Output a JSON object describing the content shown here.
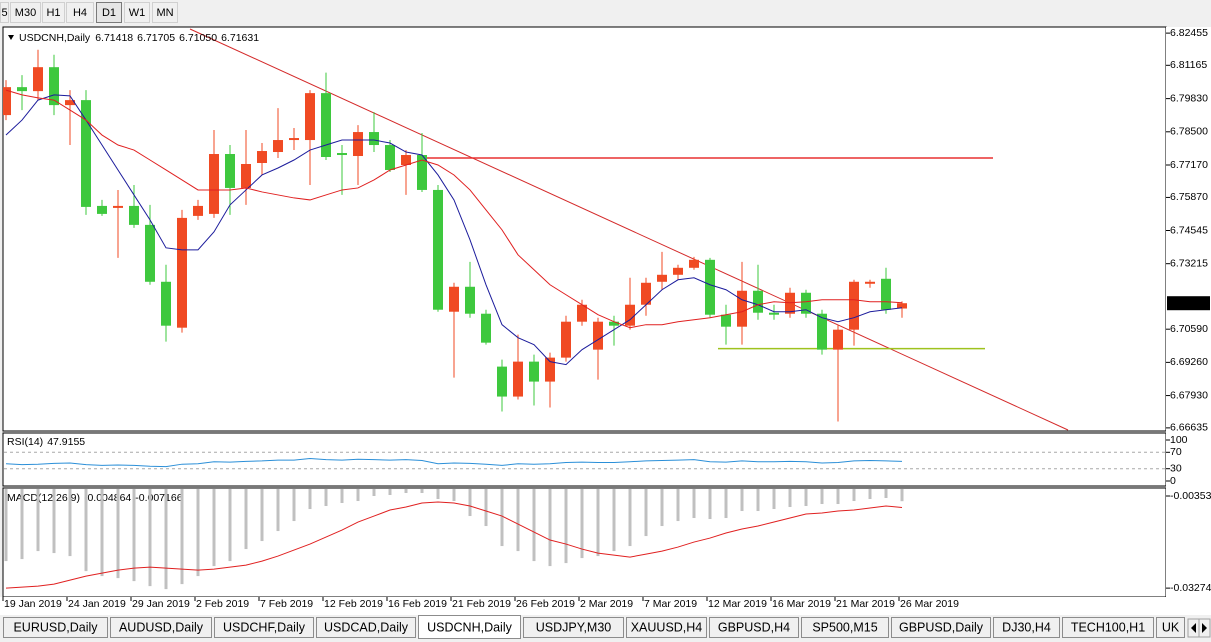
{
  "toolbar": {
    "timeframes": [
      "5",
      "M30",
      "H1",
      "H4",
      "D1",
      "W1",
      "MN"
    ],
    "active_index": 4
  },
  "chart_data": [
    {
      "type": "candlestick",
      "title": "USDCNH,Daily",
      "categories": [
        "19 Jan 2019",
        null,
        null,
        null,
        "24 Jan 2019",
        null,
        null,
        null,
        "29 Jan 2019",
        null,
        null,
        null,
        "2 Feb 2019",
        null,
        null,
        null,
        "7 Feb 2019",
        null,
        null,
        null,
        "12 Feb 2019",
        null,
        null,
        null,
        "16 Feb 2019",
        null,
        null,
        null,
        "21 Feb 2019",
        null,
        null,
        null,
        "26 Feb 2019",
        null,
        null,
        null,
        "2 Mar 2019",
        null,
        null,
        null,
        "7 Mar 2019",
        null,
        null,
        null,
        "12 Mar 2019",
        null,
        null,
        null,
        "16 Mar 2019",
        null,
        null,
        null,
        "21 Mar 2019",
        null,
        null,
        null,
        "26 Mar 2019"
      ],
      "open": [
        6.7917,
        6.8029,
        6.8013,
        6.8109,
        6.7957,
        6.7977,
        6.7553,
        6.7545,
        6.7553,
        6.7477,
        6.7249,
        6.7065,
        6.7513,
        6.7521,
        6.7761,
        6.7625,
        6.7725,
        6.7769,
        6.7817,
        6.7817,
        6.8005,
        6.7765,
        6.7753,
        6.7849,
        6.7797,
        6.7717,
        6.7757,
        6.7617,
        6.7129,
        6.7229,
        6.7121,
        6.6909,
        6.6789,
        6.6929,
        6.6849,
        6.6945,
        6.7089,
        6.6977,
        6.7089,
        6.7073,
        6.7157,
        6.7249,
        6.7277,
        6.7305,
        6.7337,
        6.7117,
        6.7069,
        6.7213,
        6.7125,
        6.7121,
        6.7205,
        6.7121,
        6.6977,
        6.7057,
        6.7241,
        6.7261,
        6.71418
      ],
      "high": [
        6.8057,
        6.8077,
        6.8179,
        6.8159,
        6.8017,
        6.8017,
        6.7577,
        6.7617,
        6.7637,
        6.7557,
        6.7317,
        6.7537,
        6.7577,
        6.7857,
        6.7797,
        6.7857,
        6.7805,
        6.7945,
        6.7865,
        6.8017,
        6.8087,
        6.7797,
        6.7877,
        6.7929,
        6.7817,
        6.7777,
        6.7845,
        6.7637,
        6.7245,
        6.7329,
        6.7137,
        6.6937,
        6.7037,
        6.6957,
        6.6965,
        6.7113,
        6.7177,
        6.7105,
        6.7113,
        6.7265,
        6.7265,
        6.7369,
        6.7317,
        6.7349,
        6.7345,
        6.7157,
        6.7329,
        6.7317,
        6.7157,
        6.7225,
        6.7217,
        6.7137,
        6.7077,
        6.7257,
        6.7257,
        6.7305,
        6.71705
      ],
      "low": [
        6.7897,
        6.7937,
        6.7977,
        6.7917,
        6.7797,
        6.7517,
        6.7513,
        6.7345,
        6.7465,
        6.7237,
        6.7009,
        6.7045,
        6.7497,
        6.7505,
        6.7517,
        6.7557,
        6.7677,
        6.7745,
        6.7777,
        6.7637,
        6.7737,
        6.7597,
        6.7637,
        6.7769,
        6.7689,
        6.7597,
        6.7609,
        6.7129,
        6.6865,
        6.7105,
        6.6997,
        6.6729,
        6.6777,
        6.6753,
        6.6745,
        6.6929,
        6.7073,
        6.6857,
        6.6993,
        6.7057,
        6.7113,
        6.7217,
        6.7257,
        6.7297,
        6.7105,
        6.6997,
        6.6997,
        6.7097,
        6.7097,
        6.7105,
        6.7105,
        6.6957,
        6.6689,
        6.6993,
        6.7225,
        6.7121,
        6.7105
      ],
      "close": [
        6.8029,
        6.8013,
        6.8109,
        6.7957,
        6.7977,
        6.7549,
        6.7521,
        6.7553,
        6.7477,
        6.7249,
        6.7073,
        6.7505,
        6.7553,
        6.7761,
        6.7625,
        6.7721,
        6.7773,
        6.7817,
        6.7825,
        6.8005,
        6.7749,
        6.7757,
        6.7849,
        6.7797,
        6.7697,
        6.7757,
        6.7617,
        6.7137,
        6.7229,
        6.7121,
        6.7005,
        6.6789,
        6.6929,
        6.6849,
        6.6945,
        6.7089,
        6.7157,
        6.7089,
        6.7073,
        6.7157,
        6.7245,
        6.7277,
        6.7305,
        6.7337,
        6.7117,
        6.7069,
        6.7213,
        6.7125,
        6.7117,
        6.7205,
        6.7121,
        6.6977,
        6.7057,
        6.7249,
        6.7249,
        6.7137,
        6.71631
      ],
      "last_low_label": "6.71050",
      "up_color": "#f04a23",
      "down_color": "#3ec83e",
      "lines": [
        {
          "color": "#1c1c9c",
          "values": [
            6.7837,
            6.7897,
            6.7977,
            6.7998,
            6.7994,
            6.7897,
            6.7797,
            6.7697,
            6.7597,
            6.7497,
            6.7385,
            6.7377,
            6.7377,
            6.7449,
            6.7557,
            6.7617,
            6.7677,
            6.7705,
            6.7737,
            6.7777,
            6.7797,
            6.7817,
            6.7817,
            6.7817,
            6.7805,
            6.7769,
            6.7757,
            6.7677,
            6.7577,
            6.7417,
            6.7237,
            6.7077,
            6.7025,
            6.6997,
            6.6929,
            6.6917,
            6.6977,
            6.7017,
            6.7057,
            6.7097,
            6.7157,
            6.7217,
            6.7257,
            6.7265,
            6.7237,
            6.7217,
            6.7177,
            6.7157,
            6.7129,
            6.7129,
            6.7137,
            6.7105,
            6.7089,
            6.7105,
            6.7129,
            6.7137,
            6.7145
          ]
        },
        {
          "color": "#e02020",
          "values": [
            6.8017,
            6.7998,
            6.7986,
            6.7977,
            6.7937,
            6.7897,
            6.7837,
            6.7797,
            6.7777,
            6.7737,
            6.7697,
            6.7657,
            6.7617,
            6.7617,
            6.7617,
            6.7625,
            6.7609,
            6.7597,
            6.7585,
            6.7577,
            6.7597,
            6.7617,
            6.7625,
            6.7657,
            6.7697,
            6.7717,
            6.7737,
            6.7717,
            6.7677,
            6.7617,
            6.7537,
            6.7457,
            6.7357,
            6.7297,
            6.7237,
            6.7197,
            6.7157,
            6.7117,
            6.7089,
            6.7065,
            6.7077,
            6.7077,
            6.7089,
            6.7097,
            6.7105,
            6.7117,
            6.7129,
            6.7157,
            6.7169,
            6.7165,
            6.7169,
            6.7177,
            6.7177,
            6.7177,
            6.7169,
            6.7169,
            6.7165
          ]
        }
      ],
      "hlines": [
        {
          "value": 6.7745,
          "color": "#e83030"
        },
        {
          "value": 6.6981,
          "color": "#9ec21e"
        }
      ],
      "ylim": [
        6.6655,
        6.827
      ],
      "yticks": [
        6.82455,
        6.81165,
        {
          "value": 6.7983,
          "label": "6.79830"
        },
        {
          "value": 6.785,
          "label": "6.78500"
        },
        {
          "value": 6.7717,
          "label": "6.77170"
        },
        {
          "value": 6.7587,
          "label": "6.75870"
        },
        6.74545,
        6.73215,
        {
          "value": 6.7059,
          "label": "6.70590"
        },
        {
          "value": 6.6926,
          "label": "6.69260"
        },
        {
          "value": 6.6793,
          "label": "6.67930"
        },
        6.66635
      ]
    },
    {
      "type": "line",
      "title": "RSI(14)",
      "color": "#2b8fd8",
      "values": [
        42,
        40,
        41,
        43,
        44,
        40,
        38,
        39,
        38,
        36,
        35,
        41,
        42,
        47,
        46,
        48,
        49,
        51,
        51,
        55,
        52,
        51,
        53,
        52,
        51,
        52,
        50,
        42,
        44,
        43,
        41,
        38,
        42,
        41,
        42,
        45,
        46,
        45,
        45,
        47,
        49,
        50,
        51,
        52,
        47,
        46,
        49,
        47,
        47,
        48,
        47,
        44,
        45,
        49,
        50,
        49,
        47.9155
      ],
      "ylim": [
        0,
        100
      ],
      "yticks": [
        100,
        70,
        30,
        0
      ],
      "levels": [
        70,
        30
      ]
    },
    {
      "type": "bar",
      "title": "MACD(12,26,9)",
      "color": "#c0c0c0",
      "values": [
        -0.02385,
        -0.02322,
        -0.02068,
        -0.02131,
        -0.02227,
        -0.02703,
        -0.02861,
        -0.02925,
        -0.0302,
        -0.03179,
        -0.03274,
        -0.03115,
        -0.02861,
        -0.02544,
        -0.02385,
        -0.02004,
        -0.0175,
        -0.01433,
        -0.01116,
        -0.00735,
        -0.00639,
        -0.00544,
        -0.00481,
        -0.00322,
        -0.0029,
        -0.00227,
        -0.00227,
        -0.00417,
        -0.00481,
        -0.00957,
        -0.01274,
        -0.01909,
        -0.02068,
        -0.02385,
        -0.02544,
        -0.02449,
        -0.0229,
        -0.02227,
        -0.02068,
        -0.01909,
        -0.01592,
        -0.01274,
        -0.01116,
        -0.0102,
        -0.01052,
        -0.0102,
        -0.00798,
        -0.00798,
        -0.00735,
        -0.00671,
        -0.00639,
        -0.00576,
        -0.00576,
        -0.00481,
        -0.00417,
        -0.00385,
        -0.004864
      ],
      "signal": {
        "color": "#e02020",
        "values": [
          -0.03274,
          -0.03242,
          -0.03211,
          -0.03147,
          -0.0302,
          -0.02893,
          -0.02798,
          -0.02703,
          -0.02639,
          -0.02608,
          -0.02639,
          -0.02671,
          -0.02703,
          -0.02671,
          -0.02608,
          -0.02544,
          -0.02417,
          -0.02258,
          -0.02068,
          -0.01877,
          -0.01655,
          -0.01433,
          -0.01179,
          -0.00989,
          -0.00798,
          -0.00703,
          -0.00576,
          -0.00544,
          -0.00576,
          -0.00671,
          -0.0083,
          -0.00989,
          -0.01243,
          -0.01496,
          -0.0175,
          -0.01877,
          -0.02036,
          -0.02163,
          -0.02227,
          -0.0229,
          -0.02195,
          -0.021,
          -0.01973,
          -0.01814,
          -0.01687,
          -0.01528,
          -0.01401,
          -0.01306,
          -0.01179,
          -0.01052,
          -0.00925,
          -0.00893,
          -0.0083,
          -0.00798,
          -0.00735,
          -0.00671,
          -0.007166
        ]
      },
      "ylim": [
        -0.03524,
        -0.001
      ],
      "yticks": [
        -0.003537,
        -0.032741
      ]
    }
  ],
  "tabs": {
    "items": [
      "EURUSD,Daily",
      "AUDUSD,Daily",
      "USDCHF,Daily",
      "USDCAD,Daily",
      "USDCNH,Daily",
      "USDJPY,M30",
      "XAUUSD,H4",
      "GBPUSD,H4",
      "SP500,M15",
      "GBPUSD,Daily",
      "DJ30,H4",
      "TECH100,H1",
      "UK"
    ],
    "active_index": 4
  }
}
